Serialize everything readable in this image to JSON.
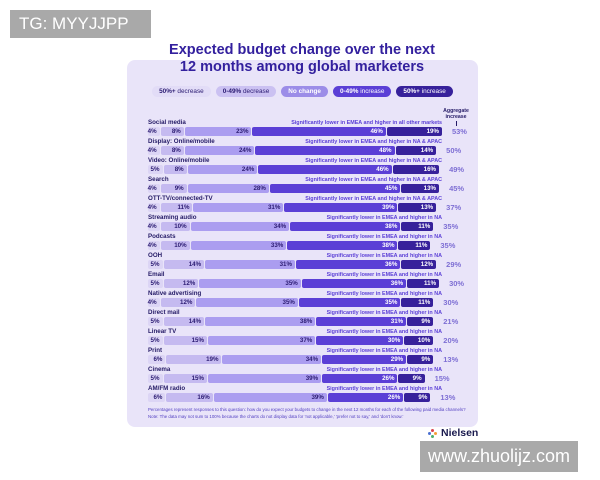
{
  "watermarks": {
    "top_left": "TG: MYYJJPP",
    "bottom_right": "www.zhuolijz.com"
  },
  "title": {
    "line1": "Expected budget change over the next",
    "line2": "12 months among global marketers"
  },
  "legend": {
    "items": [
      {
        "strong": "50%+",
        "rest": "decrease",
        "bg": "#e2dcf7",
        "fg": "#2b1b72"
      },
      {
        "strong": "0-49%",
        "rest": "decrease",
        "bg": "#cbc1f2",
        "fg": "#2b1b72"
      },
      {
        "strong": "No change",
        "rest": "",
        "bg": "#9c8de8",
        "fg": "#ffffff"
      },
      {
        "strong": "0-49%",
        "rest": "increase",
        "bg": "#5b3fd6",
        "fg": "#ffffff"
      },
      {
        "strong": "50%+",
        "rest": "increase",
        "bg": "#37219b",
        "fg": "#ffffff"
      }
    ]
  },
  "aggregate_header": {
    "line1": "Aggregate",
    "line2": "increase"
  },
  "chart_data": {
    "type": "bar",
    "stacked": true,
    "orientation": "horizontal",
    "title": "Expected budget change over the next 12 months among global marketers",
    "value_suffix": "%",
    "xlim": [
      0,
      100
    ],
    "categories": [
      "Social media",
      "Display: Online/mobile",
      "Video: Online/mobile",
      "Search",
      "OTT-TV/connected-TV",
      "Streaming audio",
      "Podcasts",
      "OOH",
      "Email",
      "Native advertising",
      "Direct mail",
      "Linear TV",
      "Print",
      "Cinema",
      "AM/FM radio"
    ],
    "series": [
      {
        "name": "50%+ decrease",
        "color": "#dcd5f5",
        "values": [
          4,
          4,
          5,
          4,
          4,
          4,
          4,
          5,
          5,
          4,
          5,
          5,
          6,
          5,
          6
        ]
      },
      {
        "name": "0-49% decrease",
        "color": "#c5baf0",
        "values": [
          8,
          8,
          8,
          9,
          11,
          10,
          10,
          14,
          12,
          12,
          14,
          15,
          19,
          15,
          16
        ]
      },
      {
        "name": "No change",
        "color": "#ab9df0",
        "values": [
          23,
          24,
          24,
          28,
          31,
          34,
          33,
          31,
          35,
          35,
          38,
          37,
          34,
          39,
          39
        ]
      },
      {
        "name": "0-49% increase",
        "color": "#5b3fd6",
        "values": [
          46,
          48,
          46,
          45,
          39,
          38,
          38,
          36,
          36,
          35,
          31,
          30,
          29,
          26,
          26
        ]
      },
      {
        "name": "50%+ increase",
        "color": "#37219b",
        "values": [
          19,
          14,
          16,
          13,
          13,
          11,
          11,
          12,
          11,
          11,
          9,
          10,
          9,
          9,
          9
        ]
      }
    ],
    "aggregate_increase": [
      53,
      50,
      49,
      45,
      37,
      35,
      35,
      29,
      30,
      30,
      21,
      20,
      13,
      15,
      13
    ],
    "annotations": [
      "Significantly lower in EMEA and higher in all other markets",
      "Significantly lower in EMEA and higher in NA & APAC",
      "Significantly lower in EMEA and higher in NA & APAC",
      "Significantly lower in EMEA and higher in NA & APAC",
      "Significantly lower in EMEA and higher in NA & APAC",
      "Significantly lower in EMEA and higher in NA",
      "Significantly lower in EMEA and higher in NA",
      "Significantly lower in EMEA and higher in NA",
      "Significantly lower in EMEA and higher in NA",
      "Significantly lower in EMEA and higher in NA",
      "Significantly lower in EMEA and higher in NA",
      "Significantly lower in EMEA and higher in NA",
      "Significantly lower in EMEA and higher in NA",
      "Significantly lower in EMEA and higher in NA",
      "Significantly lower in EMEA and higher in NA"
    ]
  },
  "footnote": {
    "line1": "Percentages represent responses to this question: how do you expect your budgets to change in the next 12 months for each of the following paid media channels?",
    "line2": "Note: The data may not sum to 100% because the charts do not display data for 'not applicable,' 'prefer not to say,' and 'don't know.'"
  },
  "brand": {
    "name": "Nielsen"
  }
}
